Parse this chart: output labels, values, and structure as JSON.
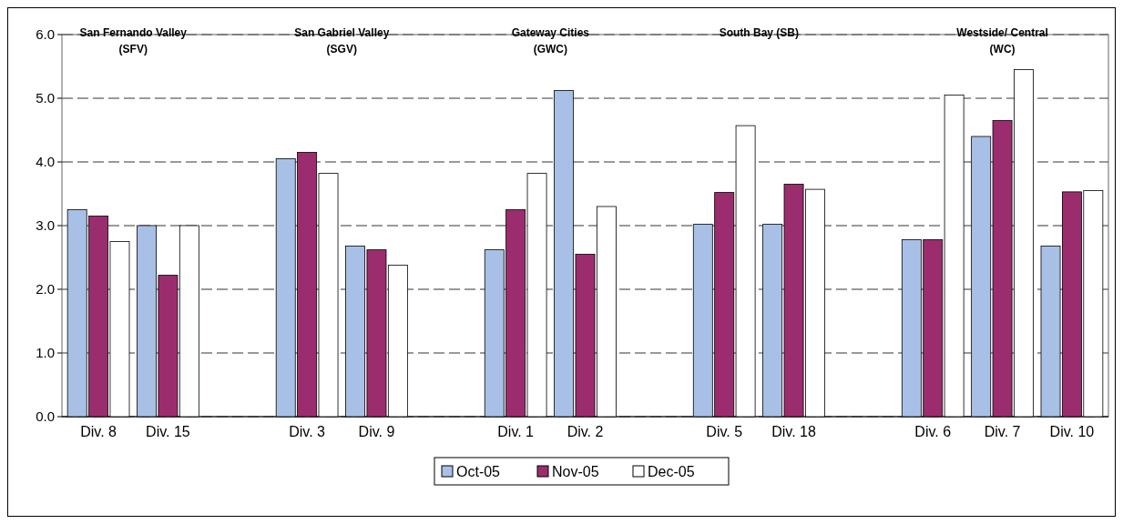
{
  "chart_data": {
    "type": "bar",
    "categories": [
      "Div. 8",
      "Div. 15",
      null,
      "Div. 3",
      "Div. 9",
      null,
      "Div. 1",
      "Div. 2",
      null,
      "Div. 5",
      "Div. 18",
      null,
      "Div. 6",
      "Div. 7",
      "Div. 10"
    ],
    "series": [
      {
        "name": "Oct-05",
        "color": "#a9c0e6",
        "values": [
          3.25,
          3.0,
          null,
          4.05,
          2.68,
          null,
          2.62,
          5.12,
          null,
          3.02,
          3.02,
          null,
          2.78,
          4.4,
          2.68
        ]
      },
      {
        "name": "Nov-05",
        "color": "#9b2d6e",
        "values": [
          3.15,
          2.22,
          null,
          4.15,
          2.62,
          null,
          3.25,
          2.55,
          null,
          3.52,
          3.65,
          null,
          2.78,
          4.65,
          3.53
        ]
      },
      {
        "name": "Dec-05",
        "color": "#ffffff",
        "values": [
          2.75,
          3.0,
          null,
          3.82,
          2.38,
          null,
          3.82,
          3.3,
          null,
          4.57,
          3.57,
          null,
          5.05,
          5.45,
          3.55
        ]
      }
    ],
    "annotations": [
      "San Fernando Valley\n(SFV)",
      "San Gabriel Valley\n(SGV)",
      "Gateway Cities\n(GWC)",
      "South Bay (SB)",
      "Westside/ Central\n(WC)"
    ],
    "ylim": [
      0,
      6
    ],
    "yticks": [
      {
        "value": 0,
        "label": "0.0"
      },
      {
        "value": 1,
        "label": "1.0"
      },
      {
        "value": 2,
        "label": "2.0"
      },
      {
        "value": 3,
        "label": "3.0"
      },
      {
        "value": 4,
        "label": "4.0"
      },
      {
        "value": 5,
        "label": "5.0"
      },
      {
        "value": 6,
        "label": "6.0"
      }
    ],
    "grid": "y",
    "legend": "bottom"
  }
}
